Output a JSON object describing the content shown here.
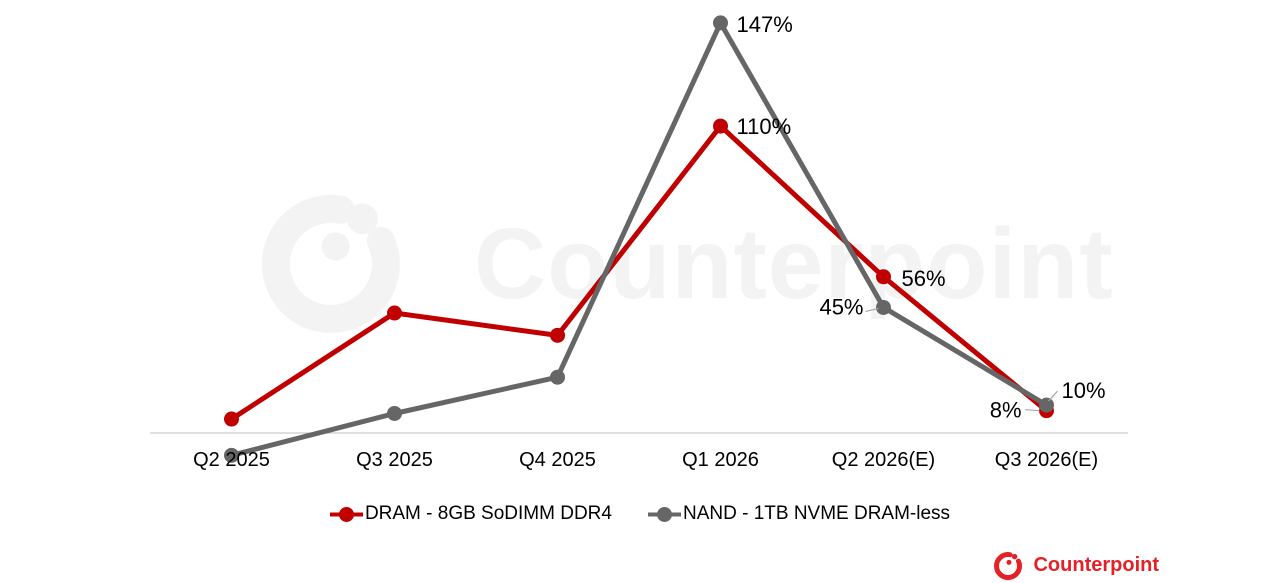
{
  "chart_data": {
    "type": "line",
    "categories": [
      "Q2 2025",
      "Q3 2025",
      "Q4 2025",
      "Q1 2026",
      "Q2 2026(E)",
      "Q3 2026(E)"
    ],
    "series": [
      {
        "name": "DRAM - 8GB SoDIMM DDR4",
        "color": "#c00000",
        "values": [
          5,
          43,
          35,
          110,
          56,
          8
        ],
        "data_labels": [
          null,
          null,
          null,
          "110%",
          "56%",
          "8%"
        ]
      },
      {
        "name": "NAND - 1TB NVME DRAM-less",
        "color": "#666666",
        "values": [
          -8,
          7,
          20,
          147,
          45,
          10
        ],
        "data_labels": [
          null,
          null,
          null,
          "147%",
          "45%",
          "10%"
        ]
      }
    ],
    "title": "",
    "xlabel": "",
    "ylabel": "",
    "ylim": [
      -20,
      160
    ],
    "baseline_value": 0,
    "gridlines": false,
    "y_axis_visible": false,
    "legend_position": "bottom"
  },
  "watermark": {
    "text": "Counterpoint"
  },
  "logo": {
    "text": "Counterpoint",
    "color": "#e32127"
  },
  "colors": {
    "axis_line": "#bfbfbf",
    "leader_line": "#a6a6a6",
    "label_text": "#000000",
    "watermark": "#f3f3f3"
  }
}
